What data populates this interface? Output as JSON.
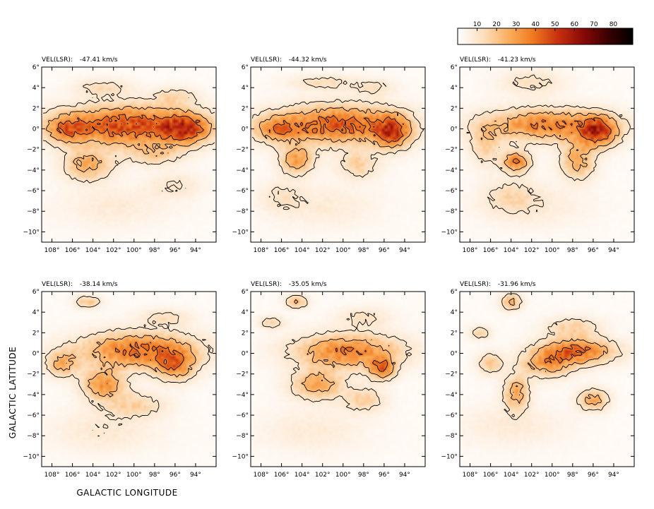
{
  "chart_data": {
    "type": "heatmap",
    "xlabel": "GALACTIC LONGITUDE",
    "ylabel": "GALACTIC LATITUDE",
    "xlim": [
      109,
      92
    ],
    "ylim": [
      -11,
      6
    ],
    "xticks": [
      108,
      106,
      104,
      102,
      100,
      98,
      96,
      94
    ],
    "xtick_labels": [
      "108°",
      "106°",
      "104°",
      "102°",
      "100°",
      "98°",
      "96°",
      "94°"
    ],
    "yticks": [
      6,
      4,
      2,
      0,
      -2,
      -4,
      -6,
      -8,
      -10
    ],
    "ytick_labels": [
      "6°",
      "4°",
      "2°",
      "0°",
      "−2°",
      "−4°",
      "−6°",
      "−8°",
      "−10°"
    ],
    "colorbar": {
      "ticks": [
        10,
        20,
        30,
        40,
        50,
        60,
        70,
        80
      ],
      "tick_labels": [
        "10",
        "20",
        "30",
        "40",
        "50",
        "60",
        "70",
        "80"
      ],
      "range": [
        0,
        90
      ],
      "colors": [
        "#ffffff",
        "#fde0c0",
        "#fbb060",
        "#f07a20",
        "#c83010",
        "#8a0a08",
        "#3a0000",
        "#000000"
      ]
    },
    "panels": [
      {
        "label": "VEL(LSR):",
        "velocity": "-47.41 km/s",
        "blobs": [
          [
            100.5,
            0.3,
            6.5,
            1.9,
            45
          ],
          [
            95,
            0,
            2.2,
            1.4,
            35
          ],
          [
            106.5,
            0,
            2.0,
            1.3,
            25
          ],
          [
            104.5,
            -3.5,
            2.3,
            1.4,
            25
          ],
          [
            98,
            -2.5,
            2.5,
            1.0,
            15
          ],
          [
            103,
            4,
            2.5,
            0.8,
            12
          ],
          [
            96,
            3.2,
            2.0,
            0.8,
            12
          ],
          [
            96,
            -5.5,
            2.5,
            1.2,
            8
          ],
          [
            102,
            -7.5,
            5,
            2,
            6
          ]
        ]
      },
      {
        "label": "VEL(LSR):",
        "velocity": "-44.32 km/s",
        "blobs": [
          [
            100.5,
            0.4,
            5.8,
            1.8,
            42
          ],
          [
            95.2,
            -0.3,
            1.7,
            1.5,
            40
          ],
          [
            104.5,
            -3.0,
            1.6,
            1.3,
            28
          ],
          [
            106.5,
            0,
            2.2,
            1.2,
            25
          ],
          [
            98.5,
            -3.5,
            2.0,
            1.3,
            15
          ],
          [
            102,
            4.5,
            3.0,
            0.7,
            12
          ],
          [
            97,
            4.0,
            2.0,
            0.8,
            10
          ],
          [
            106,
            -6.5,
            2.0,
            1.5,
            8
          ],
          [
            102,
            -7.5,
            5,
            2,
            6
          ]
        ]
      },
      {
        "label": "VEL(LSR):",
        "velocity": "-41.23 km/s",
        "blobs": [
          [
            100.5,
            0.4,
            5.8,
            1.5,
            35
          ],
          [
            95.5,
            -0.3,
            1.8,
            1.4,
            42
          ],
          [
            103.5,
            -3.2,
            1.3,
            1.0,
            35
          ],
          [
            97.5,
            -3.0,
            1.6,
            1.8,
            25
          ],
          [
            106.5,
            -1.5,
            1.5,
            2.0,
            15
          ],
          [
            102,
            4.5,
            3.0,
            1.2,
            10
          ],
          [
            104,
            -6.5,
            2.5,
            1.5,
            10
          ],
          [
            102,
            -7.5,
            5,
            2,
            6
          ]
        ]
      },
      {
        "label": "VEL(LSR):",
        "velocity": "-38.14 km/s",
        "blobs": [
          [
            99.5,
            0.3,
            5.5,
            1.7,
            38
          ],
          [
            96,
            -1.2,
            1.8,
            1.4,
            30
          ],
          [
            103,
            -3.0,
            2.0,
            1.4,
            30
          ],
          [
            107,
            -1.0,
            1.5,
            1.2,
            22
          ],
          [
            100,
            -5,
            3,
            1.2,
            14
          ],
          [
            104.5,
            5,
            1.2,
            0.6,
            18
          ],
          [
            97,
            3.5,
            2.5,
            0.8,
            10
          ],
          [
            103,
            -7.5,
            5,
            2,
            7
          ]
        ]
      },
      {
        "label": "VEL(LSR):",
        "velocity": "-35.05 km/s",
        "blobs": [
          [
            99.5,
            0.2,
            5.0,
            1.6,
            35
          ],
          [
            96.2,
            -1.5,
            1.2,
            1.0,
            35
          ],
          [
            102.5,
            -3.0,
            2.5,
            1.4,
            25
          ],
          [
            98,
            -4.5,
            2.0,
            1.2,
            15
          ],
          [
            104.5,
            5,
            1.0,
            0.6,
            22
          ],
          [
            107,
            3,
            1.2,
            0.6,
            14
          ],
          [
            98,
            3.5,
            2.5,
            0.9,
            10
          ],
          [
            103,
            -7.5,
            5,
            2,
            6
          ]
        ]
      },
      {
        "label": "VEL(LSR):",
        "velocity": "-31.96 km/s",
        "blobs": [
          [
            97.5,
            0.2,
            3.5,
            1.2,
            38
          ],
          [
            100.5,
            -1.0,
            2.5,
            1.3,
            25
          ],
          [
            103.5,
            -3.8,
            1.2,
            1.6,
            25
          ],
          [
            96,
            -4.5,
            1.4,
            1.0,
            25
          ],
          [
            106,
            -1.0,
            1.2,
            1.0,
            18
          ],
          [
            104,
            5,
            1.0,
            0.8,
            22
          ],
          [
            107,
            2,
            1.0,
            0.6,
            15
          ],
          [
            98,
            2.5,
            2.5,
            1.0,
            15
          ],
          [
            104,
            -7,
            5,
            2,
            6
          ]
        ]
      }
    ]
  }
}
